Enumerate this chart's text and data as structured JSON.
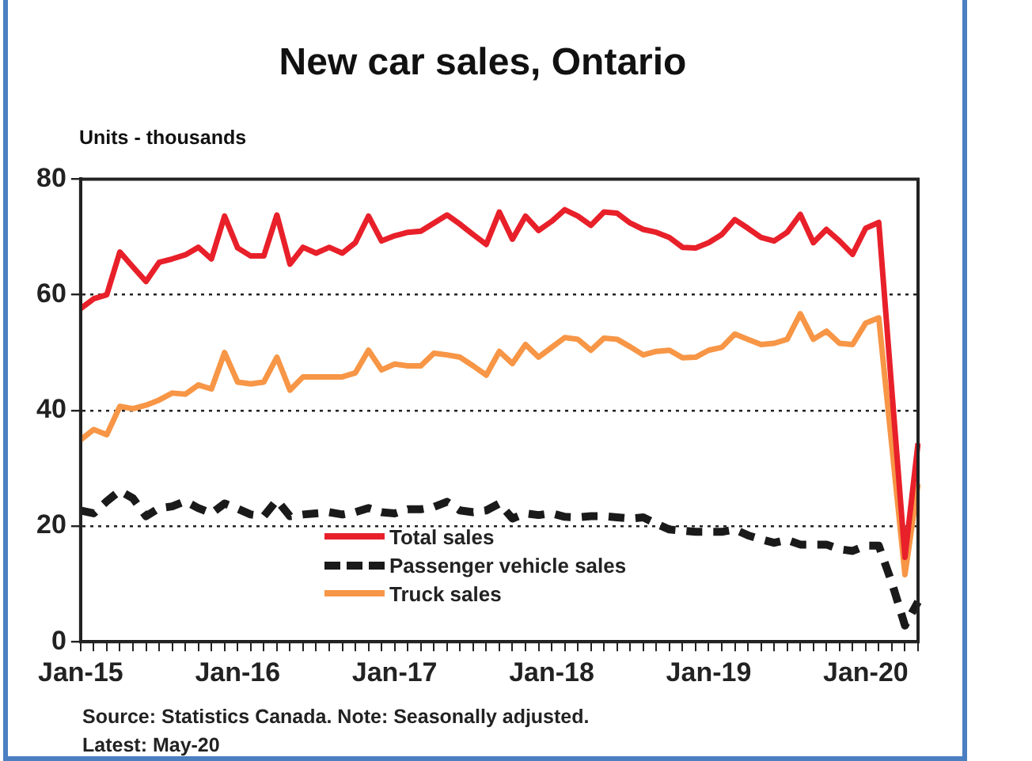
{
  "chart_data": {
    "type": "line",
    "title": "New car sales, Ontario",
    "ylabel": "Units - thousands",
    "categories": [
      "Jan-15",
      null,
      null,
      null,
      null,
      null,
      null,
      null,
      null,
      null,
      null,
      null,
      "Jan-16",
      null,
      null,
      null,
      null,
      null,
      null,
      null,
      null,
      null,
      null,
      null,
      "Jan-17",
      null,
      null,
      null,
      null,
      null,
      null,
      null,
      null,
      null,
      null,
      null,
      "Jan-18",
      null,
      null,
      null,
      null,
      null,
      null,
      null,
      null,
      null,
      null,
      null,
      "Jan-19",
      null,
      null,
      null,
      null,
      null,
      null,
      null,
      null,
      null,
      null,
      null,
      "Jan-20",
      null,
      null,
      null,
      null
    ],
    "series": [
      {
        "name": "Total sales",
        "color": "#e8202a",
        "values": [
          57.6,
          59.3,
          60.0,
          67.4,
          64.8,
          62.3,
          65.6,
          66.2,
          66.9,
          68.2,
          66.2,
          73.6,
          68.1,
          66.7,
          66.7,
          73.8,
          65.3,
          68.2,
          67.2,
          68.2,
          67.2,
          69.0,
          73.6,
          69.3,
          70.2,
          70.8,
          71.0,
          72.4,
          73.8,
          72.2,
          70.4,
          68.7,
          74.3,
          69.6,
          73.6,
          71.1,
          72.7,
          74.7,
          73.6,
          72.0,
          74.3,
          74.1,
          72.4,
          71.3,
          70.8,
          69.9,
          68.2,
          68.1,
          69.0,
          70.4,
          73.0,
          71.5,
          69.9,
          69.3,
          70.8,
          73.9,
          69.0,
          71.3,
          69.3,
          67.0,
          71.5,
          72.5,
          43.4,
          14.6,
          34.3
        ]
      },
      {
        "name": "Passenger vehicle sales",
        "color": "#1a1a1a",
        "line_style": "dashed",
        "values": [
          22.7,
          22.2,
          24.3,
          26.1,
          24.8,
          21.7,
          23.1,
          23.4,
          24.3,
          23.1,
          22.2,
          23.9,
          23.0,
          22.0,
          21.7,
          24.5,
          21.7,
          22.0,
          22.2,
          22.4,
          22.0,
          22.4,
          23.1,
          22.4,
          22.2,
          22.9,
          22.9,
          23.3,
          24.2,
          22.7,
          22.4,
          22.7,
          23.9,
          21.3,
          22.2,
          21.9,
          22.2,
          21.6,
          21.5,
          21.7,
          21.7,
          21.5,
          21.3,
          21.5,
          20.4,
          19.4,
          19.2,
          19.0,
          19.0,
          19.0,
          19.4,
          18.4,
          17.7,
          17.1,
          17.6,
          16.8,
          16.8,
          16.8,
          16.0,
          15.7,
          16.6,
          16.6,
          10.2,
          2.8,
          6.9
        ]
      },
      {
        "name": "Truck sales",
        "color": "#f79646",
        "values": [
          34.9,
          36.7,
          35.8,
          40.7,
          40.3,
          40.9,
          41.8,
          43.0,
          42.8,
          44.4,
          43.7,
          50.0,
          44.9,
          44.6,
          44.9,
          49.2,
          43.5,
          45.8,
          45.8,
          45.8,
          45.8,
          46.5,
          50.4,
          47.0,
          48.0,
          47.7,
          47.7,
          49.9,
          49.6,
          49.2,
          47.7,
          46.1,
          50.2,
          48.1,
          51.4,
          49.2,
          50.9,
          52.6,
          52.3,
          50.4,
          52.5,
          52.3,
          51.0,
          49.6,
          50.2,
          50.4,
          49.1,
          49.2,
          50.4,
          50.9,
          53.2,
          52.3,
          51.4,
          51.6,
          52.3,
          56.7,
          52.3,
          53.7,
          51.6,
          51.4,
          55.1,
          56.0,
          33.8,
          11.6,
          27.3
        ]
      }
    ],
    "ylim": [
      0,
      80
    ],
    "yticks": [
      0,
      20,
      40,
      60,
      80
    ],
    "grid": "y",
    "legend": "bottom",
    "marker": "none",
    "line_style": "solid",
    "annotations": [
      "Source: Statistics Canada. Note: Seasonally adjusted.",
      "Latest: May-20"
    ]
  }
}
